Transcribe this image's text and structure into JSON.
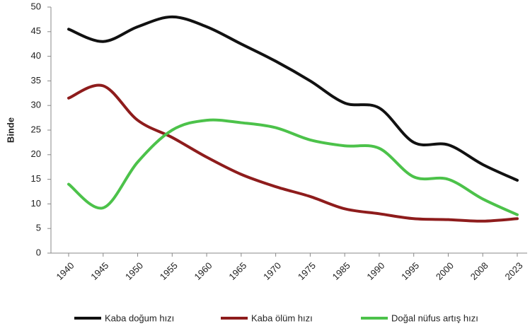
{
  "chart_data": {
    "type": "line",
    "ylabel": "Binde",
    "categories": [
      "1940",
      "1945",
      "1950",
      "1955",
      "1960",
      "1965",
      "1970",
      "1975",
      "1985",
      "1990",
      "1995",
      "2000",
      "2008",
      "2023"
    ],
    "series": [
      {
        "name": "Kaba doğum hızı",
        "color": "#111111",
        "values": [
          45.5,
          43,
          46,
          48,
          46,
          42.5,
          39,
          35,
          30.5,
          29.5,
          22.5,
          22,
          18,
          14.8
        ]
      },
      {
        "name": "Kaba ölüm hızı",
        "color": "#8e1c1c",
        "values": [
          31.5,
          34,
          27,
          23.5,
          19.5,
          16,
          13.5,
          11.5,
          9,
          8,
          7,
          6.8,
          6.5,
          7
        ]
      },
      {
        "name": "Doğal nüfus artış hızı",
        "color": "#4cc24a",
        "values": [
          14,
          9.2,
          18.5,
          25,
          27,
          26.5,
          25.5,
          23,
          21.8,
          21.3,
          15.5,
          15,
          11,
          7.8
        ]
      }
    ],
    "ylim": [
      0,
      50
    ],
    "yticks": [
      0,
      5,
      10,
      15,
      20,
      25,
      30,
      35,
      40,
      45,
      50
    ],
    "grid": false,
    "legend": "bottom"
  }
}
